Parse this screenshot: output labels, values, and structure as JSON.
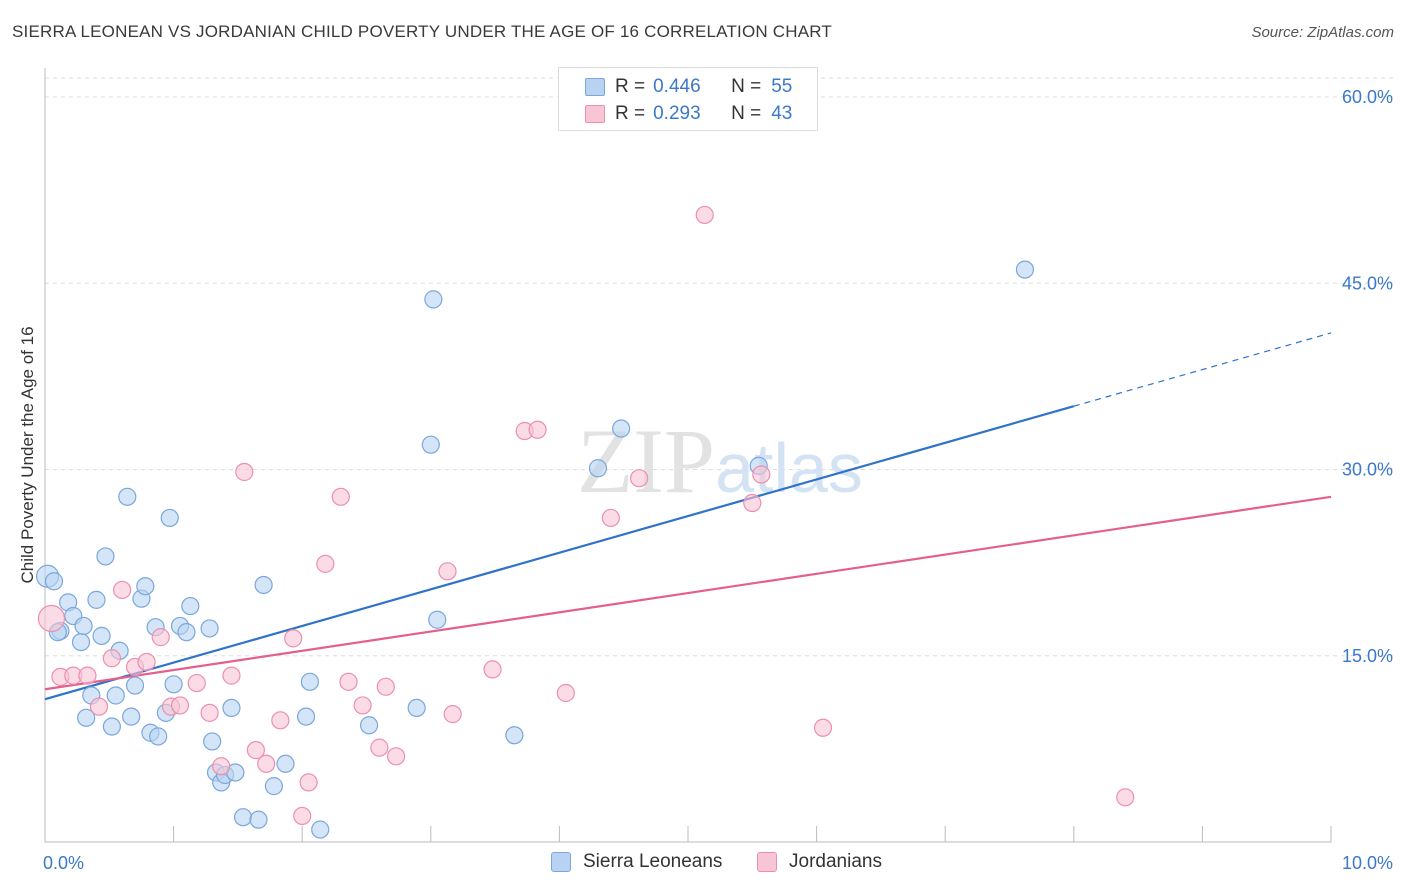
{
  "title": "SIERRA LEONEAN VS JORDANIAN CHILD POVERTY UNDER THE AGE OF 16 CORRELATION CHART",
  "source": "Source: ZipAtlas.com",
  "colors": {
    "blue_fill": "#b8d3f2",
    "blue_stroke": "#7aa7dc",
    "blue_line": "#2f72c9",
    "pink_fill": "#f8c5d5",
    "pink_stroke": "#ec8fae",
    "pink_line": "#e4608c",
    "axis_text": "#3a78c8",
    "grid": "#dddddd"
  },
  "legend": {
    "rows": [
      {
        "r_label": "R =",
        "r_value": "0.446",
        "n_label": "N =",
        "n_value": "55"
      },
      {
        "r_label": "R =",
        "r_value": "0.293",
        "n_label": "N =",
        "n_value": "43"
      }
    ]
  },
  "bottom_legend": {
    "items": [
      {
        "label": "Sierra Leoneans"
      },
      {
        "label": "Jordanians"
      }
    ]
  },
  "chart_data": {
    "type": "scatter",
    "title": "SIERRA LEONEAN VS JORDANIAN CHILD POVERTY UNDER THE AGE OF 16 CORRELATION CHART",
    "xlabel": "",
    "ylabel": "Child Poverty Under the Age of 16",
    "xlim": [
      0,
      10
    ],
    "ylim": [
      0,
      60
    ],
    "x_tick_labels": [
      "0.0%",
      "10.0%"
    ],
    "y_tick_labels": [
      "15.0%",
      "30.0%",
      "45.0%",
      "60.0%"
    ],
    "y_ticks": [
      15,
      30,
      45,
      60
    ],
    "grid": true,
    "legend_position": "top-center",
    "watermark": "ZIPatlas",
    "series": [
      {
        "name": "Sierra Leoneans",
        "r": 0.446,
        "n": 55,
        "trend": {
          "x0": 0,
          "y0": 11.5,
          "x1": 8.0,
          "y1": 35.1,
          "dashed_to_x": 10.0,
          "dashed_to_y": 41.0
        },
        "points": [
          [
            0.02,
            21.4
          ],
          [
            0.07,
            21.0
          ],
          [
            0.12,
            17.0
          ],
          [
            0.18,
            19.3
          ],
          [
            0.22,
            18.2
          ],
          [
            0.28,
            16.1
          ],
          [
            0.3,
            17.4
          ],
          [
            0.32,
            10.0
          ],
          [
            0.36,
            11.8
          ],
          [
            0.4,
            19.5
          ],
          [
            0.44,
            16.6
          ],
          [
            0.47,
            23.0
          ],
          [
            0.52,
            9.3
          ],
          [
            0.55,
            11.8
          ],
          [
            0.58,
            15.4
          ],
          [
            0.64,
            27.8
          ],
          [
            0.67,
            10.1
          ],
          [
            0.7,
            12.6
          ],
          [
            0.75,
            19.6
          ],
          [
            0.78,
            20.6
          ],
          [
            0.82,
            8.8
          ],
          [
            0.86,
            17.3
          ],
          [
            0.88,
            8.5
          ],
          [
            0.94,
            10.4
          ],
          [
            0.97,
            26.1
          ],
          [
            1.0,
            12.7
          ],
          [
            1.05,
            17.4
          ],
          [
            1.1,
            16.9
          ],
          [
            1.13,
            19.0
          ],
          [
            1.28,
            17.2
          ],
          [
            1.3,
            8.1
          ],
          [
            1.33,
            5.6
          ],
          [
            1.37,
            4.8
          ],
          [
            1.4,
            5.4
          ],
          [
            1.45,
            10.8
          ],
          [
            1.48,
            5.6
          ],
          [
            1.54,
            2.0
          ],
          [
            1.66,
            1.8
          ],
          [
            1.7,
            20.7
          ],
          [
            1.78,
            4.5
          ],
          [
            1.87,
            6.3
          ],
          [
            2.03,
            10.1
          ],
          [
            2.06,
            12.9
          ],
          [
            2.14,
            1.0
          ],
          [
            2.52,
            9.4
          ],
          [
            2.89,
            10.8
          ],
          [
            3.0,
            32.0
          ],
          [
            3.02,
            43.7
          ],
          [
            3.05,
            17.9
          ],
          [
            3.65,
            8.6
          ],
          [
            4.3,
            30.1
          ],
          [
            4.48,
            33.3
          ],
          [
            5.55,
            30.3
          ],
          [
            7.62,
            46.1
          ],
          [
            0.1,
            16.9
          ]
        ]
      },
      {
        "name": "Jordanians",
        "r": 0.293,
        "n": 43,
        "trend": {
          "x0": 0,
          "y0": 12.3,
          "x1": 10.0,
          "y1": 27.8
        },
        "points": [
          [
            0.05,
            18.0
          ],
          [
            0.12,
            13.3
          ],
          [
            0.22,
            13.4
          ],
          [
            0.33,
            13.4
          ],
          [
            0.42,
            10.9
          ],
          [
            0.52,
            14.8
          ],
          [
            0.6,
            20.3
          ],
          [
            0.7,
            14.1
          ],
          [
            0.79,
            14.5
          ],
          [
            0.9,
            16.5
          ],
          [
            0.98,
            10.9
          ],
          [
            1.05,
            11.0
          ],
          [
            1.18,
            12.8
          ],
          [
            1.28,
            10.4
          ],
          [
            1.37,
            6.1
          ],
          [
            1.45,
            13.4
          ],
          [
            1.55,
            29.8
          ],
          [
            1.64,
            7.4
          ],
          [
            1.72,
            6.3
          ],
          [
            1.83,
            9.8
          ],
          [
            1.93,
            16.4
          ],
          [
            2.0,
            2.1
          ],
          [
            2.05,
            4.8
          ],
          [
            2.18,
            22.4
          ],
          [
            2.3,
            27.8
          ],
          [
            2.36,
            12.9
          ],
          [
            2.47,
            11.0
          ],
          [
            2.6,
            7.6
          ],
          [
            2.65,
            12.5
          ],
          [
            2.73,
            6.9
          ],
          [
            3.13,
            21.8
          ],
          [
            3.17,
            10.3
          ],
          [
            3.48,
            13.9
          ],
          [
            3.73,
            33.1
          ],
          [
            3.83,
            33.2
          ],
          [
            4.05,
            12.0
          ],
          [
            4.4,
            26.1
          ],
          [
            4.62,
            29.3
          ],
          [
            5.13,
            50.5
          ],
          [
            5.5,
            27.3
          ],
          [
            5.57,
            29.6
          ],
          [
            6.05,
            9.2
          ],
          [
            8.4,
            3.6
          ]
        ]
      }
    ]
  }
}
